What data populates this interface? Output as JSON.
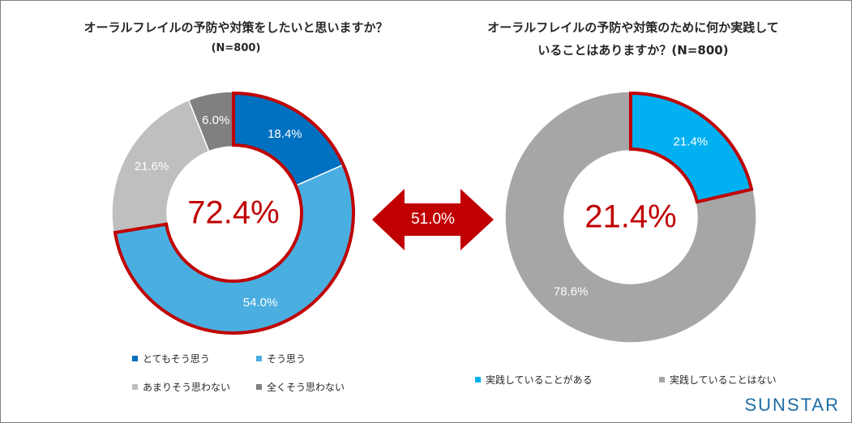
{
  "colors": {
    "very_much": "#0070c0",
    "somewhat": "#4aaee0",
    "not_really": "#bfbfbf",
    "not_at_all": "#808080",
    "doing": "#00b0f0",
    "not_doing": "#a6a6a6",
    "accent": "#c00000"
  },
  "chart_data": [
    {
      "type": "pie",
      "title": "オーラルフレイルの予防や対策をしたいと思いますか？",
      "subtitle": "(N=800)",
      "categories": [
        "とてもそう思う",
        "そう思う",
        "あまりそう思わない",
        "全くそう思わない"
      ],
      "values": [
        18.4,
        54.0,
        21.6,
        6.0
      ],
      "labels": [
        "18.4%",
        "54.0%",
        "21.6%",
        "6.0%"
      ],
      "center_label": "72.4%",
      "highlighted": [
        "とてもそう思う",
        "そう思う"
      ]
    },
    {
      "type": "pie",
      "title": "オーラルフレイルの予防や対策のために何か実践して",
      "title_line2": "いることはありますか？(N=800)",
      "categories": [
        "実践していることがある",
        "実践していることはない"
      ],
      "values": [
        21.4,
        78.6
      ],
      "labels": [
        "21.4%",
        "78.6%"
      ],
      "center_label": "21.4%",
      "highlighted": [
        "実践していることがある"
      ]
    }
  ],
  "arrow_label": "51.0%",
  "logo": "SUNSTAR"
}
